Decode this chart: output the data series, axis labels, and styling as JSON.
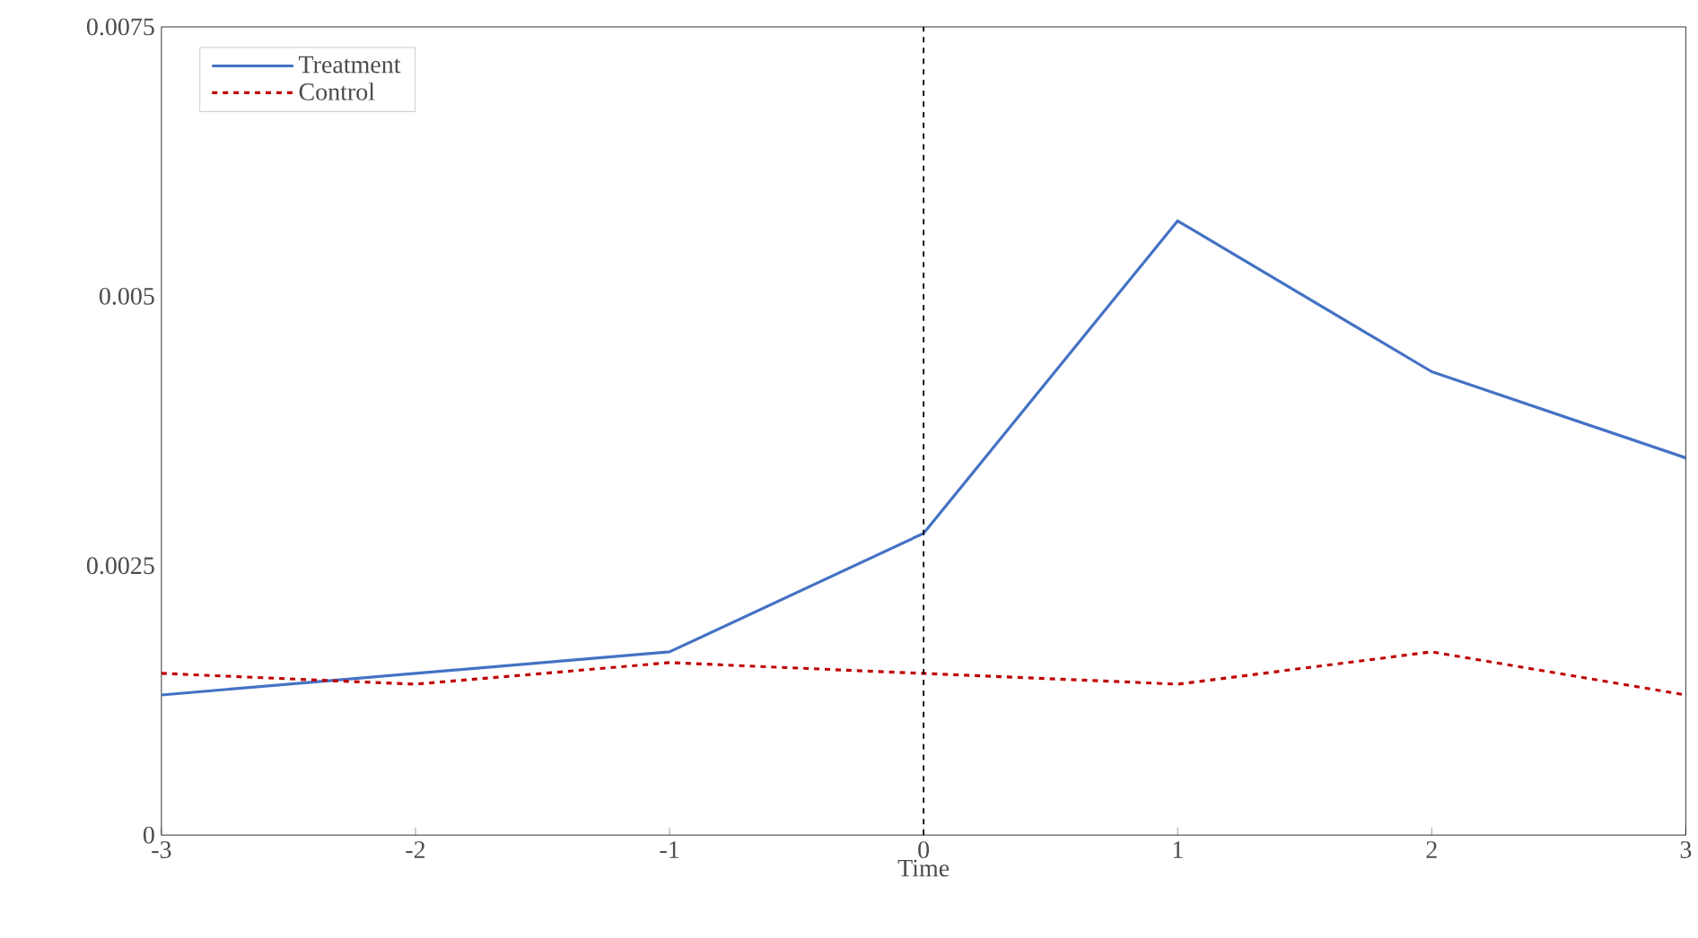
{
  "chart_data": {
    "type": "line",
    "xlabel": "Time",
    "x": [
      -3,
      -2,
      -1,
      0,
      1,
      2,
      3
    ],
    "xlim": [
      -3,
      3
    ],
    "xticks": [
      -3,
      -2,
      -1,
      0,
      1,
      2,
      3
    ],
    "ylim": [
      0,
      0.0075
    ],
    "yticks": [
      0,
      0.0025,
      0.005,
      0.0075
    ],
    "legend": "top left",
    "grid": false,
    "series": [
      {
        "name": "Treatment",
        "color": "#4472c4",
        "line_style": "solid",
        "values": [
          0.0013,
          0.0015,
          0.0017,
          0.0028,
          0.0057,
          0.0043,
          0.0035
        ]
      },
      {
        "name": "Control",
        "color": "#c00000",
        "line_style": "dashed",
        "values": [
          0.0015,
          0.0014,
          0.0016,
          0.0015,
          0.0014,
          0.0017,
          0.0013
        ]
      }
    ],
    "ref_lines": [
      {
        "axis": "x",
        "value": 0,
        "color": "#000000",
        "line_style": "dashed"
      }
    ]
  }
}
